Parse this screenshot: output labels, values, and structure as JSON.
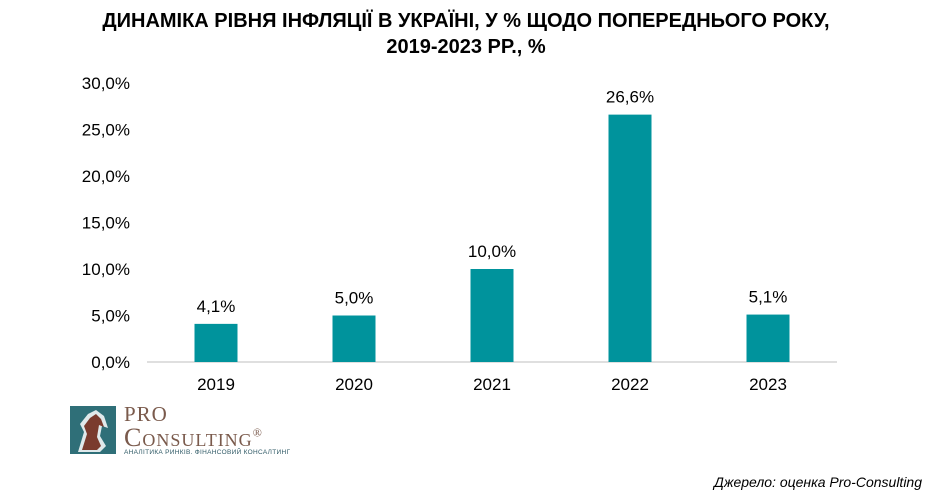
{
  "title_line1": "ДИНАМІКА РІВНЯ ІНФЛЯЦІЇ В УКРАЇНІ, У % ЩОДО ПОПЕРЕДНЬОГО РОКУ,",
  "title_line2": "2019-2023 РР., %",
  "source": "Джерело: оценка Pro-Consulting",
  "logo": {
    "pro": "PRO",
    "consulting": "Consulting",
    "registered": "®",
    "tagline": "АНАЛІТИКА РИНКІВ. ФІНАНСОВИЙ КОНСАЛТИНГ"
  },
  "colors": {
    "bar": "#00939c",
    "axis": "#bfbfbf",
    "logo": "#7a5a4c"
  },
  "chart_data": {
    "type": "bar",
    "categories": [
      "2019",
      "2020",
      "2021",
      "2022",
      "2023"
    ],
    "values": [
      4.1,
      5.0,
      10.0,
      26.6,
      5.1
    ],
    "data_labels": [
      "4,1%",
      "5,0%",
      "10,0%",
      "26,6%",
      "5,1%"
    ],
    "y_ticks": [
      "0,0%",
      "5,0%",
      "10,0%",
      "15,0%",
      "20,0%",
      "25,0%",
      "30,0%"
    ],
    "ylim": [
      0,
      30
    ],
    "grid": false,
    "legend": "none"
  }
}
